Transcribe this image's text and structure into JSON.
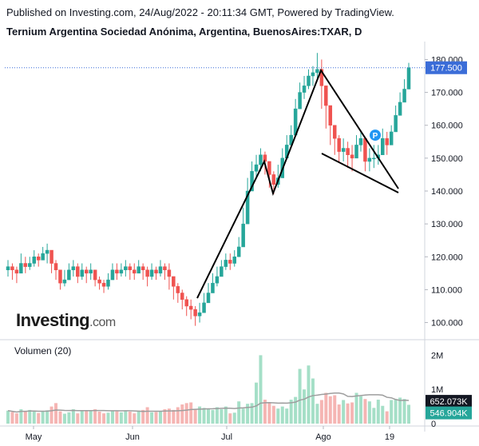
{
  "header": {
    "published": "Published on Investing.com, 24/Aug/2022 - 20:11:34 GMT, Powered by TradingView.",
    "title": "Ternium Argentina Sociedad Anónima, Argentina, BuenosAires:TXAR, D"
  },
  "logo": {
    "main": "Investing",
    "domain": ".com"
  },
  "volume_label": "Volumen (20)",
  "colors": {
    "up": "#26a69a",
    "down": "#ef5350",
    "vol_up": "#a5dfc7",
    "vol_down": "#f5b5b3",
    "price_line": "#3b6dd8",
    "vol_ma": "#9e9e9e"
  },
  "chart_data": [
    {
      "type": "candlestick",
      "title": "Ternium Argentina Sociedad Anónima, Argentina, BuenosAires:TXAR, D",
      "x_tick_labels": [
        "May",
        "Jun",
        "Jul",
        "Ago",
        "19"
      ],
      "y_tick_labels": [
        "100.000",
        "110.000",
        "120.000",
        "130.000",
        "140.000",
        "150.000",
        "160.000",
        "170.000",
        "180.000"
      ],
      "ylim": [
        96,
        184
      ],
      "last_price_label": "177.500",
      "last_price": 177.5,
      "pattern_annotation": "P",
      "close": [
        117,
        116,
        115,
        118,
        117,
        118,
        120,
        119,
        121,
        122,
        118,
        116,
        112,
        113,
        116,
        117,
        114,
        116,
        115,
        116,
        113,
        112,
        111,
        113,
        116,
        115,
        116,
        117,
        116,
        115,
        117,
        116,
        114,
        116,
        115,
        117,
        116,
        114,
        111,
        109,
        107,
        105,
        104,
        102,
        103,
        106,
        109,
        112,
        114,
        117,
        119,
        118,
        120,
        123,
        130,
        140,
        146,
        148,
        151,
        149,
        145,
        142,
        144,
        150,
        154,
        157,
        165,
        170,
        172,
        175,
        176,
        177,
        172,
        166,
        160,
        156,
        152,
        153,
        151,
        150,
        154,
        156,
        149,
        150,
        150,
        151,
        156,
        154,
        158,
        163,
        167,
        171,
        177.5
      ],
      "high": [
        119,
        118,
        117,
        121,
        120,
        120,
        122,
        121,
        123,
        124,
        122,
        119,
        116,
        116,
        118,
        119,
        118,
        118,
        117,
        118,
        116,
        114,
        113,
        115,
        118,
        118,
        118,
        119,
        118,
        118,
        119,
        118,
        117,
        118,
        117,
        119,
        118,
        118,
        114,
        112,
        110,
        108,
        107,
        105,
        106,
        109,
        112,
        115,
        117,
        119,
        121,
        121,
        122,
        126,
        135,
        144,
        149,
        151,
        153,
        152,
        149,
        146,
        148,
        153,
        157,
        160,
        168,
        173,
        175,
        177,
        178,
        182,
        180,
        172,
        164,
        160,
        157,
        156,
        155,
        154,
        157,
        158,
        156,
        153,
        154,
        154,
        159,
        158,
        160,
        166,
        170,
        174,
        179
      ],
      "low": [
        114,
        113,
        112,
        115,
        115,
        116,
        117,
        117,
        119,
        118,
        115,
        113,
        110,
        111,
        113,
        114,
        112,
        113,
        112,
        113,
        111,
        110,
        109,
        110,
        113,
        113,
        114,
        114,
        113,
        113,
        115,
        113,
        111,
        113,
        113,
        114,
        113,
        110,
        107,
        106,
        104,
        102,
        101,
        99,
        100,
        103,
        106,
        109,
        111,
        114,
        116,
        116,
        117,
        121,
        125,
        134,
        141,
        144,
        146,
        145,
        141,
        139,
        141,
        146,
        150,
        154,
        160,
        166,
        168,
        171,
        172,
        174,
        165,
        159,
        154,
        151,
        149,
        149,
        147,
        146,
        150,
        152,
        146,
        146,
        147,
        148,
        152,
        151,
        154,
        159,
        163,
        168,
        172
      ],
      "volume_ticks": [
        "0",
        "1M",
        "2M"
      ],
      "volume_ma_label": "652.073K",
      "volume_last_label": "546.904K",
      "volume_ma": 652073,
      "volume_last": 546904,
      "volume": [
        380,
        340,
        300,
        420,
        360,
        400,
        380,
        310,
        370,
        390,
        500,
        600,
        360,
        290,
        330,
        420,
        300,
        370,
        380,
        390,
        420,
        350,
        300,
        320,
        380,
        360,
        330,
        370,
        350,
        300,
        380,
        400,
        480,
        330,
        340,
        370,
        420,
        440,
        400,
        480,
        560,
        600,
        620,
        430,
        500,
        460,
        440,
        400,
        480,
        420,
        500,
        300,
        320,
        650,
        440,
        580,
        600,
        1200,
        2000,
        700,
        600,
        520,
        440,
        500,
        440,
        700,
        780,
        1600,
        1000,
        1700,
        1320,
        580,
        690,
        900,
        800,
        830,
        560,
        690,
        590,
        620,
        900,
        800,
        720,
        650,
        460,
        700,
        520,
        360,
        690,
        720,
        760,
        720,
        550
      ]
    }
  ]
}
